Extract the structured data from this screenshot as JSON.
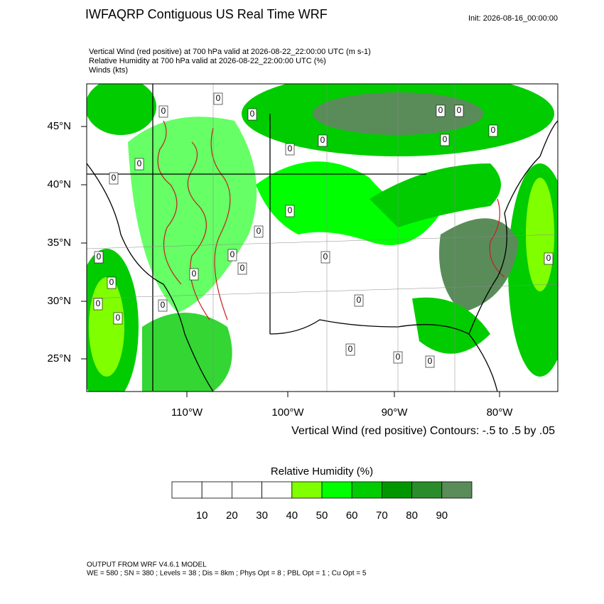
{
  "header": {
    "title": "IWFAQRP Contiguous US Real Time WRF",
    "init": "Init: 2026-08-16_00:00:00"
  },
  "plot": {
    "lines": [
      "Vertical Wind (red positive) at 700 hPa valid at 2026-08-22_22:00:00 UTC   (m s-1)",
      "Relative Humidity at 700 hPa valid at 2026-08-22_22:00:00 UTC   (%)",
      "Winds   (kts)"
    ],
    "lat_labels": [
      "45°N",
      "40°N",
      "35°N",
      "30°N",
      "25°N"
    ],
    "lon_labels": [
      "110°W",
      "100°W",
      "90°W",
      "80°W"
    ],
    "contour_label": "0",
    "contour_note": "Vertical Wind (red positive) Contours: -.5 to .5 by .05"
  },
  "colorbar": {
    "title": "Relative Humidity  (%)",
    "labels": [
      10,
      20,
      30,
      40,
      50,
      60,
      70,
      80,
      90
    ],
    "colors": [
      "#ffffff",
      "#ffffff",
      "#ffffff",
      "#ffffff",
      "#80ff00",
      "#00ff00",
      "#00cc00",
      "#009600",
      "#2a8c2a",
      "#5a8c5a"
    ]
  },
  "footer": {
    "lines": [
      "OUTPUT FROM WRF V4.6.1 MODEL",
      "WE = 580 ; SN = 380 ; Levels = 38 ; Dis = 8km ; Phys Opt = 8 ; PBL Opt = 1 ; Cu Opt = 5"
    ]
  }
}
